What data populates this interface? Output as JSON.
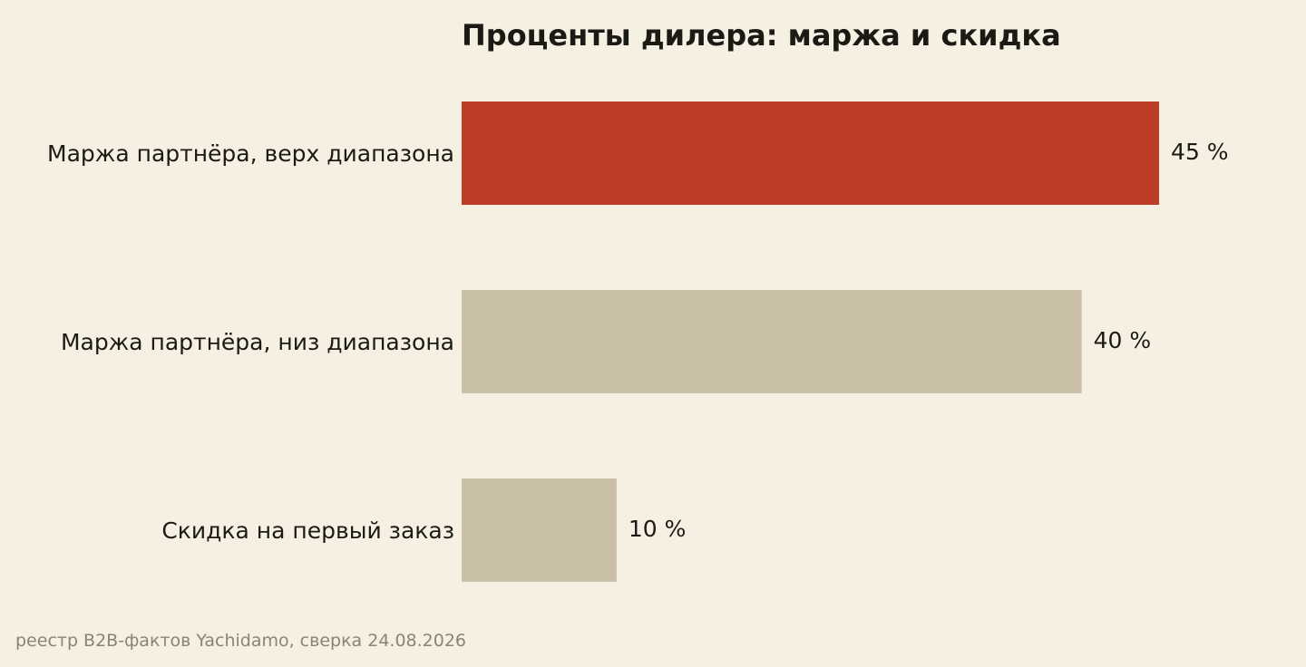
{
  "chart_data": {
    "type": "bar",
    "orientation": "horizontal",
    "title": "Проценты дилера: маржа и скидка",
    "categories": [
      "Маржа партнёра, верх диапазона",
      "Маржа партнёра, низ диапазона",
      "Скидка на первый заказ"
    ],
    "values": [
      45,
      40,
      10
    ],
    "value_labels": [
      "45 %",
      "40 %",
      "10 %"
    ],
    "unit": "%",
    "xlim": [
      0,
      48
    ],
    "grid": false,
    "legend": "none",
    "colors": {
      "highlight": "#bc3d27",
      "default": "#c9bfa7",
      "background": "#f6f0e3",
      "text": "#1c1a14"
    },
    "highlight_index": 0
  },
  "source": "реестр B2B-фактов Yachidamo, сверка 24.08.2026"
}
